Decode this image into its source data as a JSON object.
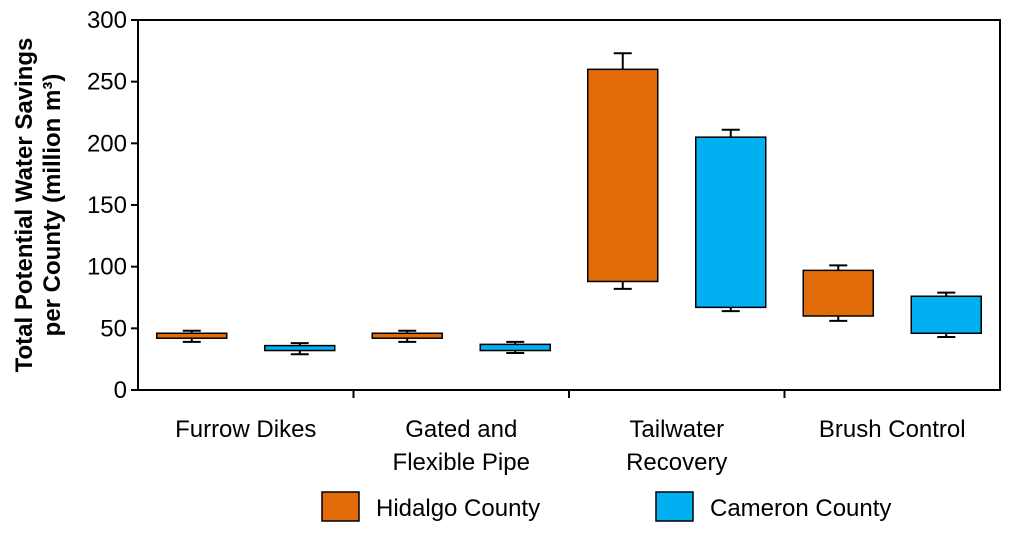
{
  "chart_data": {
    "type": "box",
    "title": "",
    "xlabel": "",
    "ylabel_lines": [
      "Total Potential Water Savings",
      "per County (million m³)"
    ],
    "ylim": [
      0,
      300
    ],
    "yticks": [
      0,
      50,
      100,
      150,
      200,
      250,
      300
    ],
    "categories": [
      {
        "lines": [
          "Furrow Dikes"
        ]
      },
      {
        "lines": [
          "Gated and",
          "Flexible Pipe"
        ]
      },
      {
        "lines": [
          "Tailwater",
          "Recovery"
        ]
      },
      {
        "lines": [
          "Brush Control"
        ]
      }
    ],
    "series": [
      {
        "name": "Hidalgo County",
        "color": "#e36c0a",
        "boxes": [
          {
            "whisker_low": 39,
            "q1": 42,
            "q3": 46,
            "whisker_high": 48
          },
          {
            "whisker_low": 39,
            "q1": 42,
            "q3": 46,
            "whisker_high": 48
          },
          {
            "whisker_low": 82,
            "q1": 88,
            "q3": 260,
            "whisker_high": 273
          },
          {
            "whisker_low": 56,
            "q1": 60,
            "q3": 97,
            "whisker_high": 101
          }
        ]
      },
      {
        "name": "Cameron County",
        "color": "#00b0f0",
        "boxes": [
          {
            "whisker_low": 29,
            "q1": 32,
            "q3": 36,
            "whisker_high": 38
          },
          {
            "whisker_low": 30,
            "q1": 32,
            "q3": 37,
            "whisker_high": 39
          },
          {
            "whisker_low": 64,
            "q1": 67,
            "q3": 205,
            "whisker_high": 211
          },
          {
            "whisker_low": 43,
            "q1": 46,
            "q3": 76,
            "whisker_high": 79
          }
        ]
      }
    ],
    "legend": {
      "position": "bottom"
    },
    "grid": false
  }
}
